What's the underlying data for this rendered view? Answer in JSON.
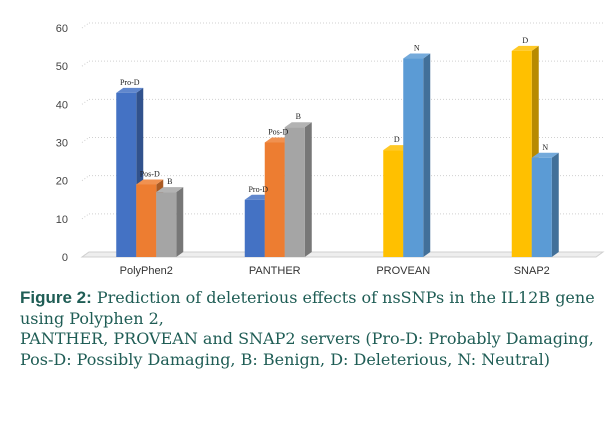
{
  "chart_data": {
    "type": "bar",
    "categories": [
      "PolyPhen2",
      "PANTHER",
      "PROVEAN",
      "SNAP2"
    ],
    "ylim": [
      0,
      60
    ],
    "yticks": [
      0,
      10,
      20,
      30,
      40,
      50,
      60
    ],
    "grid": true,
    "bars": [
      {
        "category": "PolyPhen2",
        "label": "Pro-D",
        "value": 43,
        "color": "#4472c4"
      },
      {
        "category": "PolyPhen2",
        "label": "Pos-D",
        "value": 19,
        "color": "#ed7d31"
      },
      {
        "category": "PolyPhen2",
        "label": "B",
        "value": 17,
        "color": "#a5a5a5"
      },
      {
        "category": "PANTHER",
        "label": "Pro-D",
        "value": 15,
        "color": "#4472c4"
      },
      {
        "category": "PANTHER",
        "label": "Pos-D",
        "value": 30,
        "color": "#ed7d31"
      },
      {
        "category": "PANTHER",
        "label": "B",
        "value": 34,
        "color": "#a5a5a5"
      },
      {
        "category": "PROVEAN",
        "label": "D",
        "value": 28,
        "color": "#ffc000"
      },
      {
        "category": "PROVEAN",
        "label": "N",
        "value": 52,
        "color": "#5b9bd5"
      },
      {
        "category": "SNAP2",
        "label": "D",
        "value": 54,
        "color": "#ffc000"
      },
      {
        "category": "SNAP2",
        "label": "N",
        "value": 26,
        "color": "#5b9bd5"
      }
    ]
  },
  "caption": {
    "label": "Figure 2:",
    "text": "Prediction of deleterious effects of nsSNPs in the IL12B gene using Polyphen 2,",
    "text2": "PANTHER, PROVEAN and SNAP2 servers (Pro-D: Probably Damaging, Pos-D: Possibly Damaging, B: Benign, D: Deleterious, N: Neutral)"
  }
}
